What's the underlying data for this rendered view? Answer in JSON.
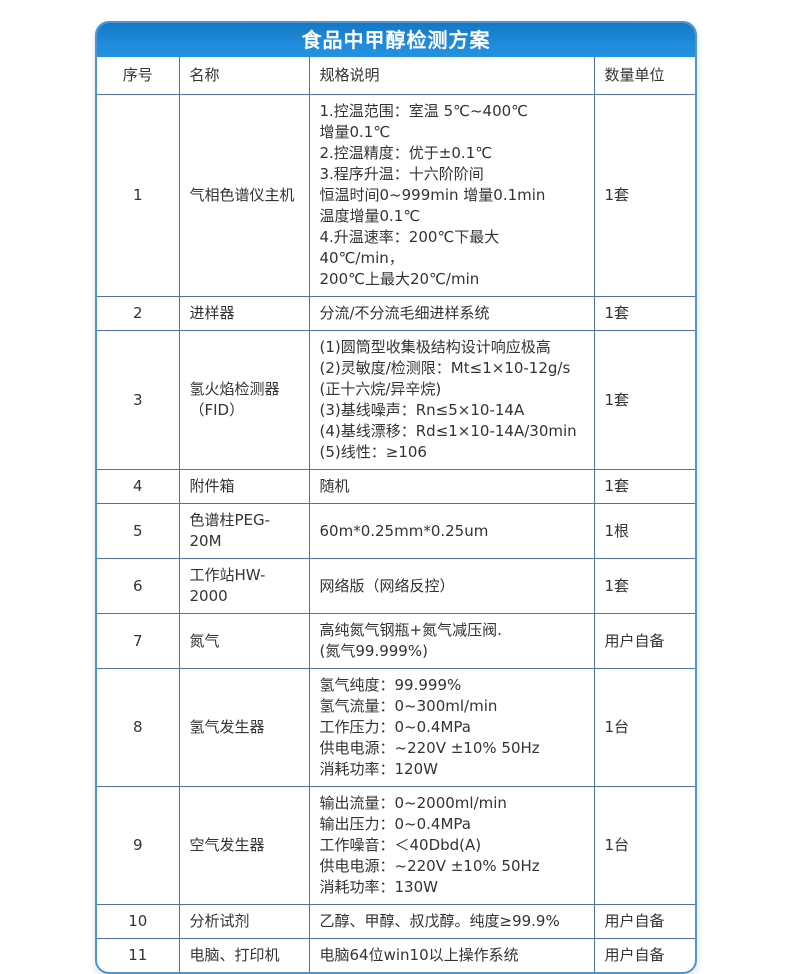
{
  "title": "食品中甲醇检测方案",
  "colors": {
    "banner_blue": "#1f8ad8",
    "frame_blue": "#4f94cd",
    "grid_line": "#51749b",
    "text": "#333333"
  },
  "table": {
    "headers": [
      "序号",
      "名称",
      "规格说明",
      "数量单位"
    ],
    "rows": [
      {
        "no": "1",
        "name": "气相色谱仪主机",
        "spec": "1.控温范围：室温 5℃~400℃\n增量0.1℃\n2.控温精度：优于±0.1℃\n3.程序升温：十六阶阶间\n恒温时间0~999min 增量0.1min\n温度增量0.1℃\n4.升温速率：200℃下最大40℃/min，\n200℃上最大20℃/min",
        "qty": "1套"
      },
      {
        "no": "2",
        "name": "进样器",
        "spec": "分流/不分流毛细进样系统",
        "qty": "1套"
      },
      {
        "no": "3",
        "name": "氢火焰检测器（FID）",
        "spec": "(1)圆筒型收集极结构设计响应极高\n(2)灵敏度/检测限：Mt≤1×10-12g/s\n(正十六烷/异辛烷)\n(3)基线噪声：Rn≤5×10-14A\n(4)基线漂移：Rd≤1×10-14A/30min\n(5)线性：≥106",
        "qty": "1套"
      },
      {
        "no": "4",
        "name": "附件箱",
        "spec": "随机",
        "qty": "1套"
      },
      {
        "no": "5",
        "name": "色谱柱PEG-20M",
        "spec": "60m*0.25mm*0.25um",
        "qty": "1根"
      },
      {
        "no": "6",
        "name": "工作站HW-2000",
        "spec": "网络版（网络反控）",
        "qty": "1套"
      },
      {
        "no": "7",
        "name": "氮气",
        "spec": "高纯氮气钢瓶+氮气减压阀.\n(氮气99.999%)",
        "qty": "用户自备"
      },
      {
        "no": "8",
        "name": "氢气发生器",
        "spec": "氢气纯度：99.999%\n氢气流量：0~300ml/min\n工作压力：0~0.4MPa\n供电电源：~220V ±10% 50Hz\n消耗功率：120W",
        "qty": "1台"
      },
      {
        "no": "9",
        "name": "空气发生器",
        "spec": "输出流量：0~2000ml/min\n输出压力：0~0.4MPa\n工作噪音：＜40Dbd(A)\n供电电源：~220V ±10% 50Hz\n消耗功率：130W",
        "qty": "1台"
      },
      {
        "no": "10",
        "name": "分析试剂",
        "spec": "乙醇、甲醇、叔戊醇。纯度≥99.9%",
        "qty": "用户自备"
      },
      {
        "no": "11",
        "name": "电脑、打印机",
        "spec": "电脑64位win10以上操作系统",
        "qty": "用户自备"
      }
    ]
  }
}
